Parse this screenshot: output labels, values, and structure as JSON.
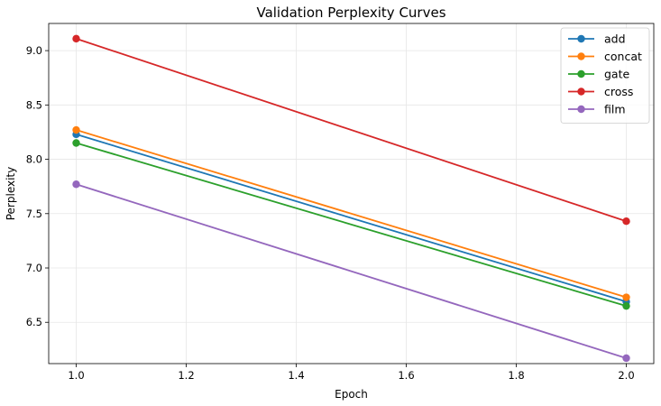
{
  "chart_data": {
    "type": "line",
    "title": "Validation Perplexity Curves",
    "xlabel": "Epoch",
    "ylabel": "Perplexity",
    "x": [
      1.0,
      2.0
    ],
    "xlim": [
      0.95,
      2.05
    ],
    "ylim": [
      6.12,
      9.25
    ],
    "xticks": [
      1.0,
      1.2,
      1.4,
      1.6,
      1.8,
      2.0
    ],
    "xtick_labels": [
      "1.0",
      "1.2",
      "1.4",
      "1.6",
      "1.8",
      "2.0"
    ],
    "yticks": [
      6.5,
      7.0,
      7.5,
      8.0,
      8.5,
      9.0
    ],
    "ytick_labels": [
      "6.5",
      "7.0",
      "7.5",
      "8.0",
      "8.5",
      "9.0"
    ],
    "grid": true,
    "legend_position": "top-right",
    "series": [
      {
        "name": "add",
        "color": "#1f77b4",
        "values": [
          8.23,
          6.69
        ]
      },
      {
        "name": "concat",
        "color": "#ff7f0e",
        "values": [
          8.27,
          6.73
        ]
      },
      {
        "name": "gate",
        "color": "#2ca02c",
        "values": [
          8.15,
          6.65
        ]
      },
      {
        "name": "cross",
        "color": "#d62728",
        "values": [
          9.11,
          7.43
        ]
      },
      {
        "name": "film",
        "color": "#9467bd",
        "values": [
          7.77,
          6.17
        ]
      }
    ]
  }
}
